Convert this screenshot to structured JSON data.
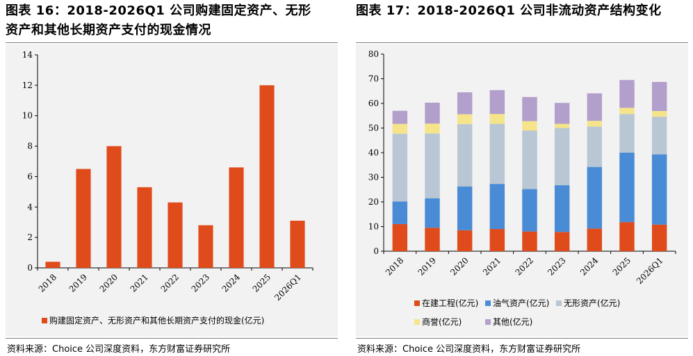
{
  "left": {
    "title_line1": "图表 16：2018-2026Q1 公司购建固定资产、无形",
    "title_line2": "资产和其他长期资产支付的现金情况",
    "source": "资料来源：Choice 公司深度资料，东方财富证券研究所"
  },
  "right": {
    "title_line1": "图表 17：2018-2026Q1 公司非流动资产结构变化",
    "source": "资料来源：Choice 公司深度资料，东方财富证券研究所"
  },
  "colors": {
    "orange": "#e04b1c",
    "blue": "#4a8bd6",
    "gray": "#b8c7d3",
    "yellow": "#f6e48b",
    "purple": "#b39fcb",
    "panel_bg": "#f2f2f2"
  },
  "chart_data": [
    {
      "type": "bar",
      "categories": [
        "2018",
        "2019",
        "2020",
        "2021",
        "2022",
        "2023",
        "2024",
        "2025",
        "2026Q1"
      ],
      "series": [
        {
          "name": "购建固定资产、无形资产和其他长期资产支付的现金(亿元)",
          "values": [
            0.4,
            6.5,
            8.0,
            5.3,
            4.3,
            2.8,
            6.6,
            12.0,
            3.1
          ],
          "color": "#e04b1c"
        }
      ],
      "ylim": [
        0,
        14
      ],
      "yticks": [
        0,
        2,
        4,
        6,
        8,
        10,
        12,
        14
      ],
      "legend": "bottom",
      "grid": false
    },
    {
      "type": "bar",
      "stacked": true,
      "categories": [
        "2018",
        "2019",
        "2020",
        "2021",
        "2022",
        "2023",
        "2024",
        "2025",
        "2026Q1"
      ],
      "series": [
        {
          "name": "在建工程(亿元)",
          "values": [
            11.0,
            9.5,
            8.5,
            9.0,
            8.0,
            7.8,
            9.2,
            11.8,
            10.8
          ],
          "color": "#e04b1c"
        },
        {
          "name": "油气资产(亿元)",
          "values": [
            9.2,
            12.0,
            17.8,
            18.3,
            17.2,
            19.0,
            25.0,
            28.2,
            28.5
          ],
          "color": "#4a8bd6"
        },
        {
          "name": "无形资产(亿元)",
          "values": [
            27.5,
            26.3,
            25.3,
            24.4,
            23.8,
            23.2,
            16.4,
            15.7,
            15.3
          ],
          "color": "#b8c7d3"
        },
        {
          "name": "商誉(亿元)",
          "values": [
            4.0,
            4.0,
            4.0,
            4.0,
            3.8,
            1.7,
            2.3,
            2.5,
            2.3
          ],
          "color": "#f6e48b"
        },
        {
          "name": "其他(亿元)",
          "values": [
            5.3,
            8.5,
            8.9,
            9.7,
            9.8,
            8.5,
            11.2,
            11.3,
            11.8
          ],
          "color": "#b39fcb"
        }
      ],
      "ylim": [
        0,
        80
      ],
      "yticks": [
        0,
        10,
        20,
        30,
        40,
        50,
        60,
        70,
        80
      ],
      "legend": "bottom",
      "grid": false
    }
  ]
}
